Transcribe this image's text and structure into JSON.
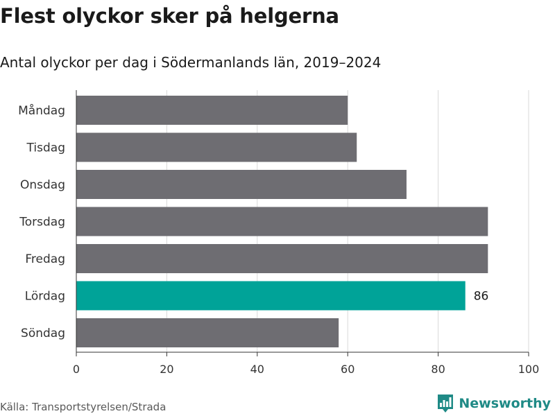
{
  "header": {
    "title": "Flest olyckor sker på helgerna",
    "subtitle": "Antal olyckor per dag i Södermanlands län, 2019–2024"
  },
  "footer": {
    "source": "Källa: Transportstyrelsen/Strada",
    "brand": "Newsworthy",
    "brand_icon": "bar-chart-icon"
  },
  "colors": {
    "bar": "#6e6d72",
    "highlight": "#00a398",
    "grid": "#d9d9d9",
    "axis": "#333333",
    "brand": "#1f8a86"
  },
  "chart_data": {
    "type": "bar",
    "orientation": "horizontal",
    "categories": [
      "Måndag",
      "Tisdag",
      "Onsdag",
      "Torsdag",
      "Fredag",
      "Lördag",
      "Söndag"
    ],
    "values": [
      60,
      62,
      73,
      91,
      91,
      86,
      58
    ],
    "highlight_index": 5,
    "data_labels": [
      "",
      "",
      "",
      "",
      "",
      "86",
      ""
    ],
    "xlim": [
      0,
      100
    ],
    "xticks": [
      "0",
      "20",
      "40",
      "60",
      "80",
      "100"
    ],
    "xlabel": "",
    "ylabel": "",
    "grid": true
  }
}
